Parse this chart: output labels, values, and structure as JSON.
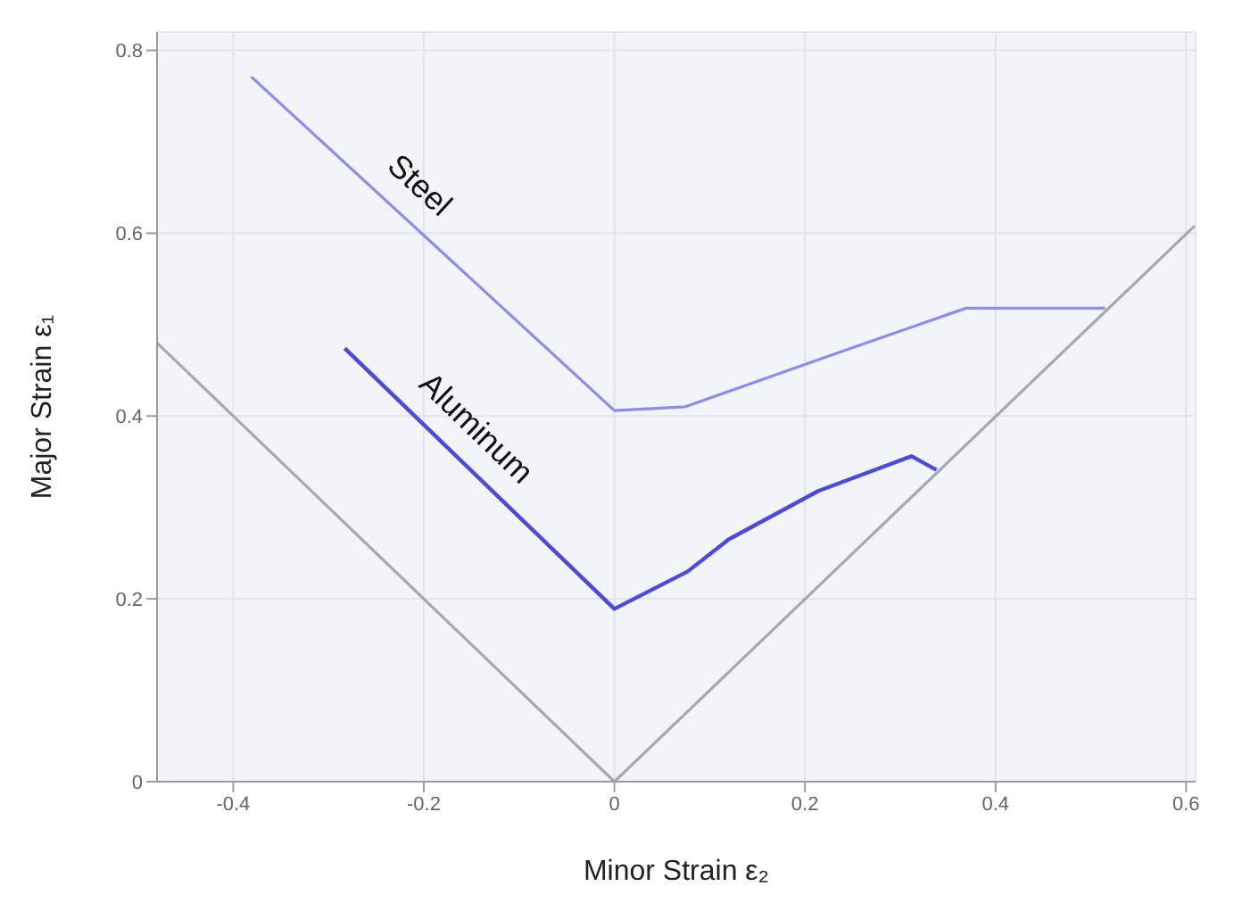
{
  "chart_data": {
    "type": "line",
    "xlabel": "Minor Strain ε₂",
    "ylabel": "Major Strain ε₁",
    "xlim": [
      -0.48,
      0.61
    ],
    "ylim": [
      0,
      0.82
    ],
    "xticks": [
      -0.4,
      -0.2,
      0,
      0.2,
      0.4,
      0.6
    ],
    "yticks": [
      0,
      0.2,
      0.4,
      0.6,
      0.8
    ],
    "grid": true,
    "legend": false,
    "marker": "none",
    "line_style": "solid",
    "series": [
      {
        "name": "Steel",
        "color": "#8c8cf0",
        "x": [
          -0.381,
          0,
          0.074,
          0.237,
          0.369,
          0.515
        ],
        "values": [
          0.771,
          0.406,
          0.41,
          0.47,
          0.518,
          0.518
        ]
      },
      {
        "name": "Aluminum",
        "color": "#4a4ae0",
        "x": [
          -0.283,
          0,
          0.077,
          0.12,
          0.214,
          0.312,
          0.338
        ],
        "values": [
          0.474,
          0.189,
          0.23,
          0.265,
          0.318,
          0.356,
          0.341
        ]
      },
      {
        "color": "#a8a8b0",
        "x": [
          -0.48,
          0
        ],
        "values": [
          0.48,
          0
        ]
      },
      {
        "color": "#a8a8b0",
        "x": [
          0,
          0.609
        ],
        "values": [
          0,
          0.608
        ]
      }
    ]
  }
}
